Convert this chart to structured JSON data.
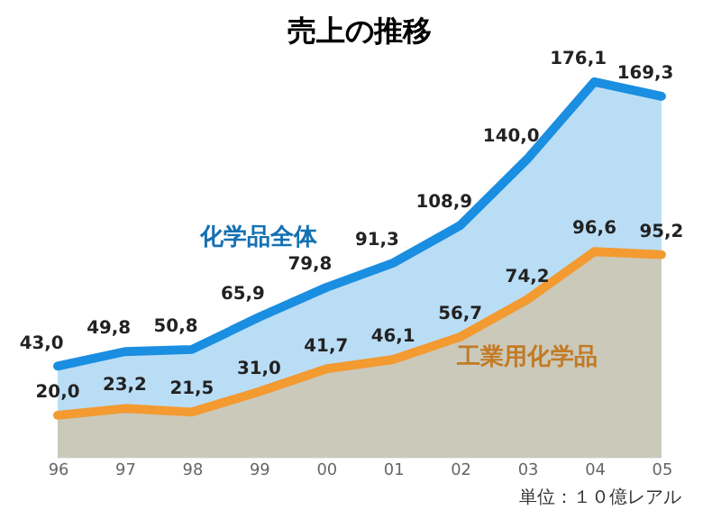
{
  "chart_data": {
    "type": "area",
    "title": "売上の推移",
    "categories": [
      "96",
      "97",
      "98",
      "99",
      "00",
      "01",
      "02",
      "03",
      "04",
      "05"
    ],
    "series": [
      {
        "name": "化学品全体",
        "color": "#1a8ee0",
        "values": [
          43.0,
          49.8,
          50.8,
          65.9,
          79.8,
          91.3,
          108.9,
          140.0,
          176.1,
          169.3
        ],
        "value_labels": [
          "43,0",
          "49,8",
          "50,8",
          "65,9",
          "79,8",
          "91,3",
          "108,9",
          "140,0",
          "176,1",
          "169,3"
        ]
      },
      {
        "name": "工業用化学品",
        "color": "#f39a30",
        "values": [
          20.0,
          23.2,
          21.5,
          31.0,
          41.7,
          46.1,
          56.7,
          74.2,
          96.6,
          95.2
        ],
        "value_labels": [
          "20,0",
          "23,2",
          "21,5",
          "31,0",
          "41,7",
          "46,1",
          "56,7",
          "74,2",
          "96,6",
          "95,2"
        ]
      }
    ],
    "annotations": [
      "単位：１０億レアル"
    ],
    "tick_labels": "x",
    "grid": false
  }
}
